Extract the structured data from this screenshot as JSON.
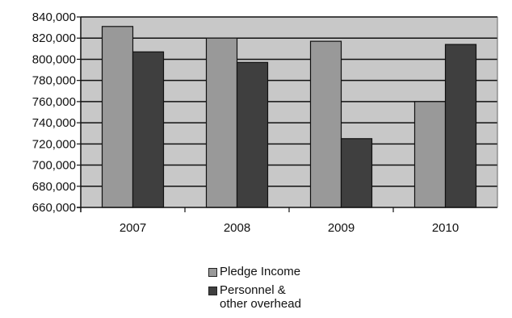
{
  "chart_data": {
    "type": "bar",
    "categories": [
      "2007",
      "2008",
      "2009",
      "2010"
    ],
    "series": [
      {
        "name": "Pledge Income",
        "values": [
          831000,
          820000,
          817000,
          760000
        ],
        "color": "#999999"
      },
      {
        "name": "Personnel &\nother overhead",
        "values": [
          807000,
          797000,
          725000,
          814000
        ],
        "color": "#3f3f3f"
      }
    ],
    "ylim": [
      660000,
      840000
    ],
    "yticks": [
      660000,
      680000,
      700000,
      720000,
      740000,
      760000,
      780000,
      800000,
      820000,
      840000
    ],
    "ytick_labels": [
      "660,000",
      "680,000",
      "700,000",
      "720,000",
      "740,000",
      "760,000",
      "780,000",
      "800,000",
      "820,000",
      "840,000"
    ],
    "grid": true,
    "plot_background": "#c8c8c8",
    "legend_position": "bottom"
  }
}
